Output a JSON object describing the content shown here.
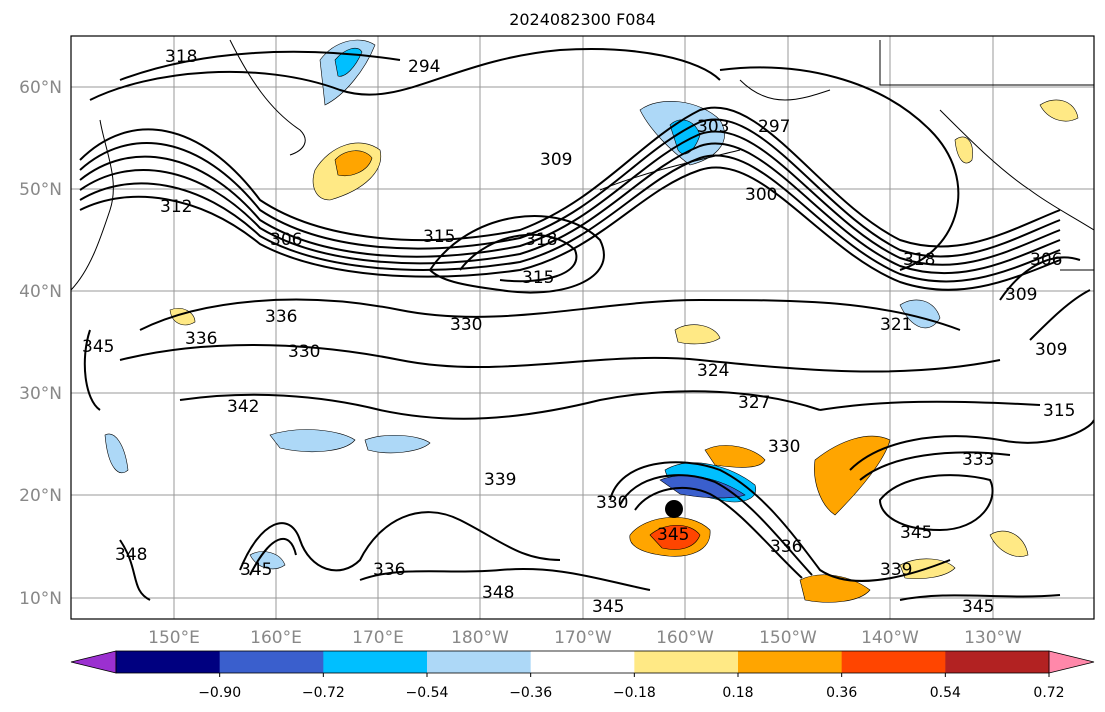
{
  "title": "2024082300 F084",
  "lat_labels": [
    "60°N",
    "50°N",
    "40°N",
    "30°N",
    "20°N",
    "10°N"
  ],
  "lon_labels": [
    "150°E",
    "160°E",
    "170°E",
    "180°W",
    "170°W",
    "160°W",
    "150°W",
    "140°W",
    "130°W"
  ],
  "contour_labels": [
    "318",
    "294",
    "297",
    "303",
    "309",
    "300",
    "306",
    "312",
    "315",
    "318",
    "315",
    "318",
    "309",
    "306",
    "336",
    "336",
    "330",
    "330",
    "321",
    "309",
    "324",
    "327",
    "315",
    "342",
    "345",
    "330",
    "333",
    "339",
    "330",
    "345",
    "345",
    "336",
    "339",
    "336",
    "348",
    "348",
    "345",
    "345",
    "345"
  ],
  "colorbar": {
    "ticks": [
      "−0.90",
      "−0.72",
      "−0.54",
      "−0.36",
      "−0.18",
      "0.18",
      "0.36",
      "0.54",
      "0.72",
      "0.90"
    ],
    "colors": [
      "#9b30d0",
      "#000080",
      "#3a5fcd",
      "#00bfff",
      "#add8f7",
      "#ffffff",
      "#ffe985",
      "#ffa500",
      "#ff4500",
      "#b22222",
      "#ff88aa"
    ]
  },
  "storm_marker": "black-dot"
}
